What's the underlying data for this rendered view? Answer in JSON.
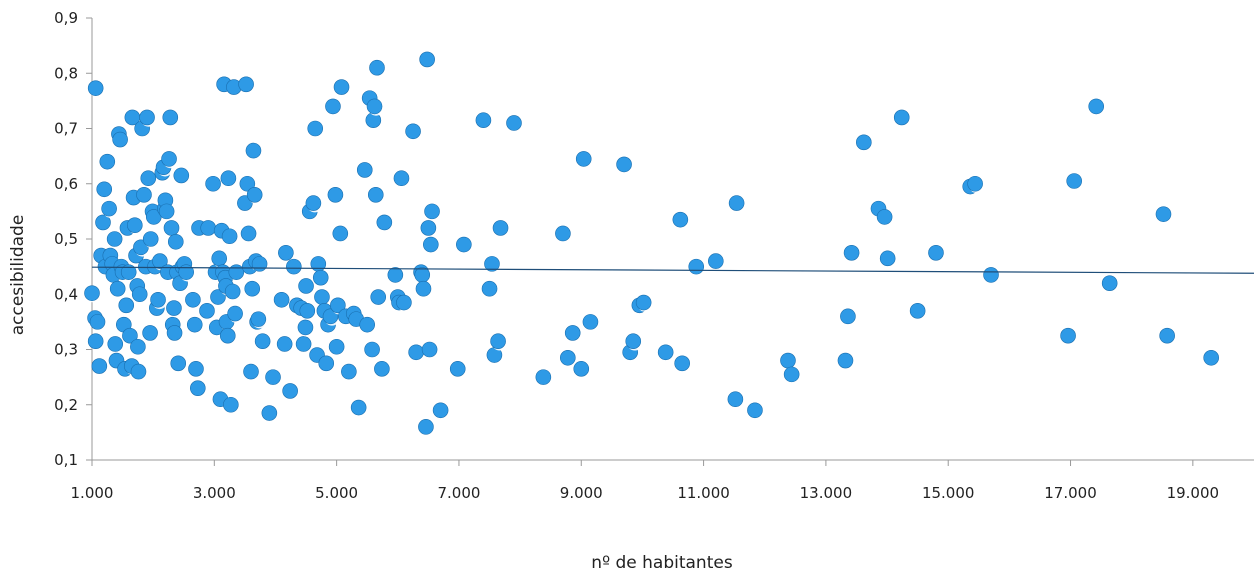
{
  "chart_data": {
    "type": "scatter",
    "title": "",
    "xlabel": "nº de habitantes",
    "ylabel": "accesibilidade",
    "xlim": [
      1000,
      20000
    ],
    "ylim": [
      0.1,
      0.9
    ],
    "x_ticks": [
      1000,
      3000,
      5000,
      7000,
      9000,
      11000,
      13000,
      15000,
      17000,
      19000
    ],
    "x_tick_labels": [
      "1.000",
      "3.000",
      "5.000",
      "7.000",
      "9.000",
      "11.000",
      "13.000",
      "15.000",
      "17.000",
      "19.000"
    ],
    "y_ticks": [
      0.1,
      0.2,
      0.3,
      0.4,
      0.5,
      0.6,
      0.7,
      0.8,
      0.9
    ],
    "y_tick_labels": [
      "0,1",
      "0,2",
      "0,3",
      "0,4",
      "0,5",
      "0,6",
      "0,7",
      "0,8",
      "0,9"
    ],
    "grid": false,
    "legend": "none",
    "colors": {
      "point": "#2e9ae6",
      "point_edge": "#1a6fb0",
      "trend": "#1f4e79",
      "axis": "#999999"
    },
    "trend_line": {
      "x": [
        1000,
        20000
      ],
      "y": [
        0.449,
        0.438
      ]
    },
    "series": [
      {
        "points": [
          [
            1060,
            0.773
          ],
          [
            1000,
            0.402
          ],
          [
            1050,
            0.357
          ],
          [
            1090,
            0.35
          ],
          [
            1060,
            0.315
          ],
          [
            1120,
            0.27
          ],
          [
            1150,
            0.47
          ],
          [
            1180,
            0.53
          ],
          [
            1200,
            0.59
          ],
          [
            1220,
            0.45
          ],
          [
            1250,
            0.64
          ],
          [
            1280,
            0.555
          ],
          [
            1300,
            0.47
          ],
          [
            1330,
            0.455
          ],
          [
            1350,
            0.435
          ],
          [
            1370,
            0.5
          ],
          [
            1380,
            0.31
          ],
          [
            1400,
            0.28
          ],
          [
            1420,
            0.41
          ],
          [
            1440,
            0.69
          ],
          [
            1460,
            0.68
          ],
          [
            1480,
            0.45
          ],
          [
            1500,
            0.44
          ],
          [
            1520,
            0.345
          ],
          [
            1540,
            0.265
          ],
          [
            1560,
            0.38
          ],
          [
            1580,
            0.52
          ],
          [
            1600,
            0.44
          ],
          [
            1620,
            0.325
          ],
          [
            1650,
            0.27
          ],
          [
            1660,
            0.72
          ],
          [
            1680,
            0.575
          ],
          [
            1700,
            0.525
          ],
          [
            1720,
            0.47
          ],
          [
            1740,
            0.415
          ],
          [
            1750,
            0.305
          ],
          [
            1760,
            0.26
          ],
          [
            1780,
            0.4
          ],
          [
            1800,
            0.485
          ],
          [
            1820,
            0.7
          ],
          [
            1850,
            0.58
          ],
          [
            1880,
            0.45
          ],
          [
            1900,
            0.72
          ],
          [
            1920,
            0.61
          ],
          [
            1950,
            0.33
          ],
          [
            1960,
            0.5
          ],
          [
            1990,
            0.55
          ],
          [
            2010,
            0.54
          ],
          [
            2030,
            0.45
          ],
          [
            2060,
            0.375
          ],
          [
            2080,
            0.39
          ],
          [
            2110,
            0.46
          ],
          [
            2150,
            0.62
          ],
          [
            2170,
            0.63
          ],
          [
            2190,
            0.555
          ],
          [
            2200,
            0.57
          ],
          [
            2220,
            0.55
          ],
          [
            2240,
            0.44
          ],
          [
            2260,
            0.645
          ],
          [
            2280,
            0.72
          ],
          [
            2300,
            0.52
          ],
          [
            2320,
            0.345
          ],
          [
            2340,
            0.375
          ],
          [
            2350,
            0.33
          ],
          [
            2370,
            0.495
          ],
          [
            2390,
            0.44
          ],
          [
            2410,
            0.275
          ],
          [
            2440,
            0.42
          ],
          [
            2460,
            0.615
          ],
          [
            2480,
            0.45
          ],
          [
            2510,
            0.455
          ],
          [
            2540,
            0.44
          ],
          [
            2650,
            0.39
          ],
          [
            2680,
            0.345
          ],
          [
            2700,
            0.265
          ],
          [
            2730,
            0.23
          ],
          [
            2750,
            0.52
          ],
          [
            2880,
            0.37
          ],
          [
            2900,
            0.52
          ],
          [
            2980,
            0.6
          ],
          [
            3020,
            0.44
          ],
          [
            3040,
            0.34
          ],
          [
            3060,
            0.395
          ],
          [
            3080,
            0.465
          ],
          [
            3100,
            0.21
          ],
          [
            3120,
            0.515
          ],
          [
            3140,
            0.44
          ],
          [
            3160,
            0.78
          ],
          [
            3180,
            0.43
          ],
          [
            3190,
            0.415
          ],
          [
            3200,
            0.35
          ],
          [
            3220,
            0.325
          ],
          [
            3230,
            0.61
          ],
          [
            3250,
            0.505
          ],
          [
            3270,
            0.2
          ],
          [
            3300,
            0.405
          ],
          [
            3320,
            0.775
          ],
          [
            3340,
            0.365
          ],
          [
            3360,
            0.44
          ],
          [
            3500,
            0.565
          ],
          [
            3520,
            0.78
          ],
          [
            3540,
            0.6
          ],
          [
            3560,
            0.51
          ],
          [
            3580,
            0.45
          ],
          [
            3600,
            0.26
          ],
          [
            3620,
            0.41
          ],
          [
            3640,
            0.66
          ],
          [
            3660,
            0.58
          ],
          [
            3680,
            0.46
          ],
          [
            3700,
            0.35
          ],
          [
            3720,
            0.355
          ],
          [
            3740,
            0.455
          ],
          [
            3790,
            0.315
          ],
          [
            3900,
            0.185
          ],
          [
            3960,
            0.25
          ],
          [
            4100,
            0.39
          ],
          [
            4150,
            0.31
          ],
          [
            4170,
            0.475
          ],
          [
            4240,
            0.225
          ],
          [
            4300,
            0.45
          ],
          [
            4350,
            0.38
          ],
          [
            4420,
            0.375
          ],
          [
            4460,
            0.31
          ],
          [
            4490,
            0.34
          ],
          [
            4500,
            0.415
          ],
          [
            4520,
            0.37
          ],
          [
            4560,
            0.55
          ],
          [
            4620,
            0.565
          ],
          [
            4650,
            0.7
          ],
          [
            4680,
            0.29
          ],
          [
            4700,
            0.455
          ],
          [
            4740,
            0.43
          ],
          [
            4760,
            0.395
          ],
          [
            4800,
            0.37
          ],
          [
            4830,
            0.275
          ],
          [
            4860,
            0.345
          ],
          [
            4900,
            0.36
          ],
          [
            4940,
            0.74
          ],
          [
            4980,
            0.58
          ],
          [
            5000,
            0.305
          ],
          [
            5020,
            0.38
          ],
          [
            5060,
            0.51
          ],
          [
            5080,
            0.775
          ],
          [
            5150,
            0.36
          ],
          [
            5200,
            0.26
          ],
          [
            5280,
            0.365
          ],
          [
            5320,
            0.355
          ],
          [
            5360,
            0.195
          ],
          [
            5460,
            0.625
          ],
          [
            5500,
            0.345
          ],
          [
            5540,
            0.755
          ],
          [
            5580,
            0.3
          ],
          [
            5600,
            0.715
          ],
          [
            5620,
            0.74
          ],
          [
            5640,
            0.58
          ],
          [
            5660,
            0.81
          ],
          [
            5680,
            0.395
          ],
          [
            5740,
            0.265
          ],
          [
            5780,
            0.53
          ],
          [
            5960,
            0.435
          ],
          [
            6000,
            0.395
          ],
          [
            6020,
            0.385
          ],
          [
            6060,
            0.61
          ],
          [
            6100,
            0.385
          ],
          [
            6250,
            0.695
          ],
          [
            6300,
            0.295
          ],
          [
            6380,
            0.44
          ],
          [
            6400,
            0.435
          ],
          [
            6420,
            0.41
          ],
          [
            6460,
            0.16
          ],
          [
            6480,
            0.825
          ],
          [
            6500,
            0.52
          ],
          [
            6520,
            0.3
          ],
          [
            6540,
            0.49
          ],
          [
            6560,
            0.55
          ],
          [
            6700,
            0.19
          ],
          [
            6980,
            0.265
          ],
          [
            7080,
            0.49
          ],
          [
            7400,
            0.715
          ],
          [
            7500,
            0.41
          ],
          [
            7540,
            0.455
          ],
          [
            7580,
            0.29
          ],
          [
            7640,
            0.315
          ],
          [
            7680,
            0.52
          ],
          [
            7900,
            0.71
          ],
          [
            8380,
            0.25
          ],
          [
            8700,
            0.51
          ],
          [
            8780,
            0.285
          ],
          [
            8860,
            0.33
          ],
          [
            9000,
            0.265
          ],
          [
            9040,
            0.645
          ],
          [
            9150,
            0.35
          ],
          [
            9700,
            0.635
          ],
          [
            9800,
            0.295
          ],
          [
            9850,
            0.315
          ],
          [
            9950,
            0.38
          ],
          [
            10020,
            0.385
          ],
          [
            10380,
            0.295
          ],
          [
            10620,
            0.535
          ],
          [
            10650,
            0.275
          ],
          [
            10880,
            0.45
          ],
          [
            11200,
            0.46
          ],
          [
            11520,
            0.21
          ],
          [
            11540,
            0.565
          ],
          [
            11840,
            0.19
          ],
          [
            12380,
            0.28
          ],
          [
            12440,
            0.255
          ],
          [
            13320,
            0.28
          ],
          [
            13360,
            0.36
          ],
          [
            13420,
            0.475
          ],
          [
            13620,
            0.675
          ],
          [
            13860,
            0.555
          ],
          [
            13960,
            0.54
          ],
          [
            14010,
            0.465
          ],
          [
            14240,
            0.72
          ],
          [
            14500,
            0.37
          ],
          [
            14800,
            0.475
          ],
          [
            15360,
            0.595
          ],
          [
            15440,
            0.6
          ],
          [
            15700,
            0.435
          ],
          [
            16960,
            0.325
          ],
          [
            17060,
            0.605
          ],
          [
            17420,
            0.74
          ],
          [
            17640,
            0.42
          ],
          [
            18520,
            0.545
          ],
          [
            18580,
            0.325
          ],
          [
            19300,
            0.285
          ]
        ]
      }
    ]
  }
}
